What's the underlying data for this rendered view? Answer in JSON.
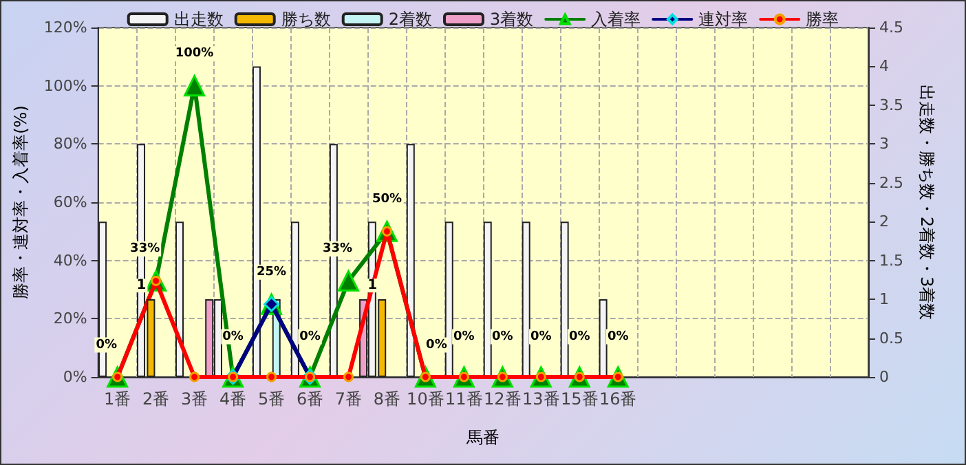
{
  "chart_data": {
    "type": "bar",
    "xlabel": "馬番",
    "ylabel": "勝率・連対率・入着率(%)",
    "y2label": "出走数・勝ち数・2着数・3着数",
    "categories": [
      "1番",
      "2番",
      "3番",
      "4番",
      "5番",
      "6番",
      "7番",
      "8番",
      "10番",
      "11番",
      "12番",
      "13番",
      "15番",
      "16番",
      null,
      null,
      null,
      null,
      null,
      null
    ],
    "series": [
      {
        "name": "出走数",
        "axis": "y2",
        "color": "#f4f4f4",
        "values": [
          2,
          3,
          2,
          1,
          4,
          2,
          3,
          2,
          3,
          2,
          2,
          2,
          2,
          1,
          null,
          null,
          null,
          null,
          null,
          null
        ]
      },
      {
        "name": "勝ち数",
        "axis": "y2",
        "color": "#f5b800",
        "values": [
          null,
          1,
          null,
          null,
          null,
          null,
          null,
          1,
          null,
          null,
          null,
          null,
          null,
          null,
          null,
          null,
          null,
          null,
          null,
          null
        ],
        "value_labels": [
          null,
          "1",
          null,
          null,
          null,
          null,
          null,
          "1",
          null,
          null,
          null,
          null,
          null,
          null,
          null,
          null,
          null,
          null,
          null,
          null
        ]
      },
      {
        "name": "2着数",
        "axis": "y2",
        "color": "#c4f4f4",
        "values": [
          null,
          null,
          null,
          null,
          1,
          null,
          null,
          null,
          null,
          null,
          null,
          null,
          null,
          null,
          null,
          null,
          null,
          null,
          null,
          null
        ]
      },
      {
        "name": "3着数",
        "axis": "y2",
        "color": "#f0a0c8",
        "values": [
          null,
          null,
          1,
          null,
          null,
          null,
          1,
          null,
          null,
          null,
          null,
          null,
          null,
          null,
          null,
          null,
          null,
          null,
          null,
          null
        ]
      },
      {
        "name": "入着率",
        "type": "line",
        "marker": "triangle",
        "color": "#008000",
        "values": [
          0,
          33,
          100,
          0,
          25,
          0,
          33,
          50,
          0,
          0,
          0,
          0,
          0,
          0,
          null,
          null,
          null,
          null,
          null,
          null
        ],
        "value_labels": [
          "0%",
          "33%",
          "100%",
          "0%",
          "25%",
          "0%",
          "33%",
          "50%",
          "0%",
          "0%",
          "0%",
          "0%",
          "0%",
          "0%",
          null,
          null,
          null,
          null,
          null,
          null
        ]
      },
      {
        "name": "連対率",
        "type": "line",
        "marker": "diamond",
        "color": "#000080",
        "values": [
          null,
          null,
          null,
          0,
          25,
          0,
          null,
          null,
          null,
          null,
          null,
          null,
          null,
          null,
          null,
          null,
          null,
          null,
          null,
          null
        ]
      },
      {
        "name": "勝率",
        "type": "line",
        "marker": "circle",
        "color": "#ff0000",
        "values": [
          0,
          33,
          0,
          0,
          0,
          0,
          0,
          50,
          0,
          0,
          0,
          0,
          0,
          0,
          null,
          null,
          null,
          null,
          null,
          null
        ]
      }
    ],
    "ylim": [
      0,
      120
    ],
    "yticks": [
      {
        "value": 0,
        "label": "0%"
      },
      {
        "value": 20,
        "label": "20%"
      },
      {
        "value": 40,
        "label": "40%"
      },
      {
        "value": 60,
        "label": "60%"
      },
      {
        "value": 80,
        "label": "80%"
      },
      {
        "value": 100,
        "label": "100%"
      },
      {
        "value": 120,
        "label": "120%"
      }
    ],
    "y2lim": [
      0,
      4.5
    ],
    "y2ticks": [
      0,
      0.5,
      1,
      1.5,
      2,
      2.5,
      3,
      3.5,
      4,
      4.5
    ],
    "grid": true,
    "legend": "top"
  }
}
